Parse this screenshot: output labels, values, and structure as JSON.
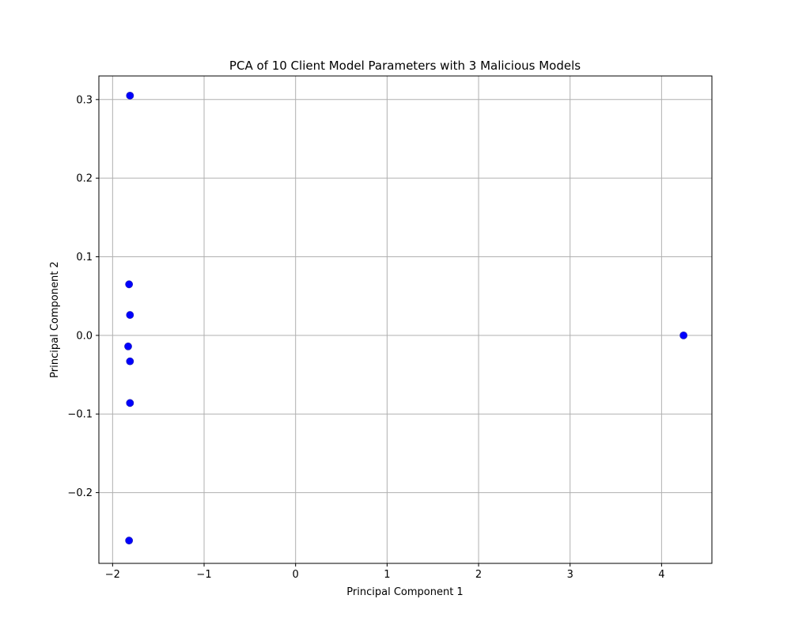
{
  "chart_data": {
    "type": "scatter",
    "title": "PCA of 10 Client Model Parameters with 3 Malicious Models",
    "xlabel": "Principal Component 1",
    "ylabel": "Principal Component 2",
    "xlim": [
      -2.15,
      4.55
    ],
    "ylim": [
      -0.29,
      0.33
    ],
    "xticks": [
      -2,
      -1,
      0,
      1,
      2,
      3,
      4
    ],
    "xtick_labels": [
      "−2",
      "−1",
      "0",
      "1",
      "2",
      "3",
      "4"
    ],
    "yticks": [
      -0.2,
      -0.1,
      0.0,
      0.1,
      0.2,
      0.3
    ],
    "ytick_labels": [
      "−0.2",
      "−0.1",
      "0.0",
      "0.1",
      "0.2",
      "0.3"
    ],
    "grid": true,
    "marker_color": "#0000ff",
    "points": [
      {
        "x": -1.81,
        "y": 0.305
      },
      {
        "x": -1.82,
        "y": 0.065
      },
      {
        "x": -1.81,
        "y": 0.026
      },
      {
        "x": -1.83,
        "y": -0.014
      },
      {
        "x": -1.81,
        "y": -0.033
      },
      {
        "x": -1.81,
        "y": -0.086
      },
      {
        "x": -1.82,
        "y": -0.261
      },
      {
        "x": 4.24,
        "y": 0.0
      }
    ]
  }
}
